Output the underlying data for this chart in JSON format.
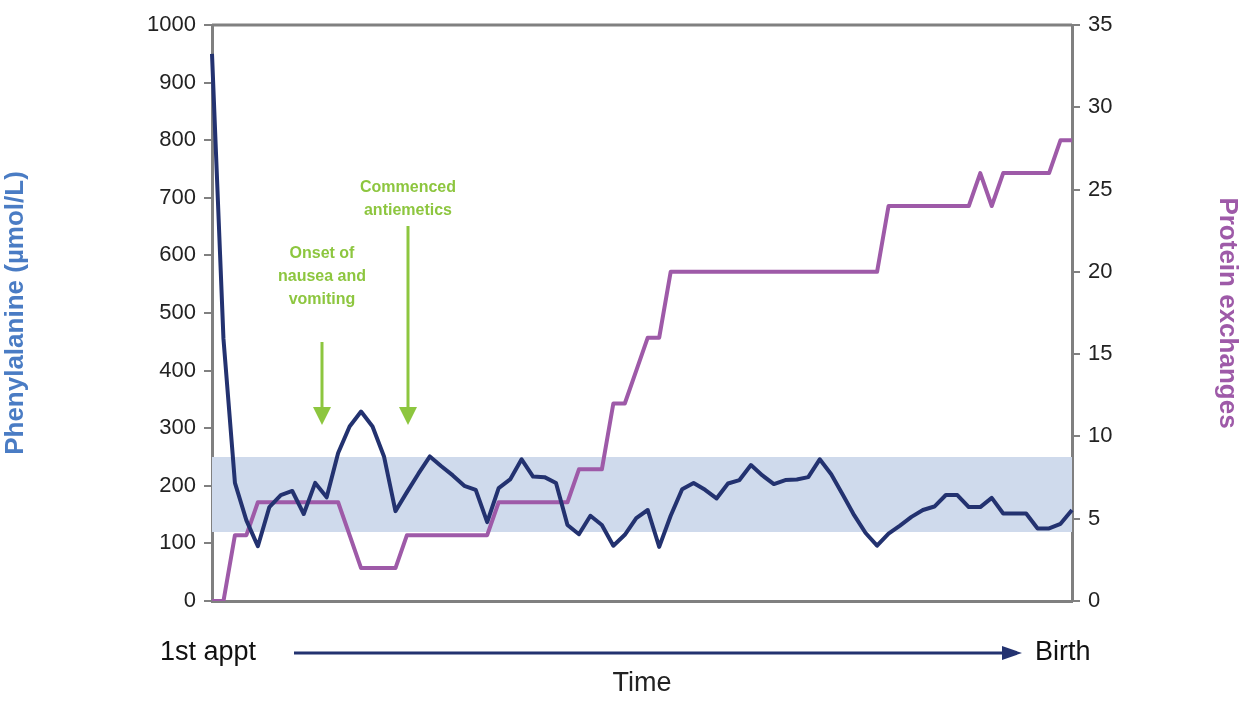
{
  "chart_data": {
    "type": "line",
    "xlabel": "Time",
    "ylabel": "Phenylalanine (µmol/L)",
    "y2label": "Protein exchanges",
    "categories": [
      null,
      null,
      null,
      null,
      null,
      null,
      null,
      null,
      null,
      null,
      null,
      null,
      null,
      null,
      null,
      null,
      null,
      null,
      null,
      null,
      null,
      null,
      null,
      null,
      null,
      null,
      null,
      null,
      null,
      null,
      null,
      null,
      null,
      null,
      null,
      null,
      null,
      null,
      null,
      null,
      null,
      null,
      null,
      null,
      null,
      null,
      null,
      null,
      null,
      null,
      null,
      null,
      null,
      null,
      null,
      null,
      null,
      null,
      null,
      null,
      null,
      null,
      null,
      null,
      null,
      null,
      null,
      null,
      null,
      null,
      null,
      null,
      null,
      null,
      null,
      null
    ],
    "series": [
      {
        "color": "#233270",
        "values": [
          950,
          455,
          205,
          140,
          95,
          163,
          184,
          191,
          151,
          205,
          180,
          257,
          303,
          329,
          303,
          251,
          156,
          189,
          221,
          251,
          234,
          218,
          200,
          193,
          137,
          196,
          211,
          246,
          216,
          215,
          205,
          132,
          116,
          148,
          132,
          96,
          115,
          144,
          158,
          94,
          148,
          194,
          205,
          193,
          178,
          204,
          210,
          236,
          218,
          203,
          210,
          211,
          215,
          246,
          220,
          185,
          149,
          118,
          96,
          117,
          131,
          146,
          158,
          164,
          184,
          184,
          163,
          163,
          179,
          152,
          152,
          152,
          126,
          126,
          134,
          158
        ]
      },
      {
        "color": "#9e5aa8",
        "axis": "y2",
        "values": [
          0,
          0,
          4,
          4,
          6,
          6,
          6,
          6,
          6,
          6,
          6,
          6,
          4,
          2,
          2,
          2,
          2,
          4,
          4,
          4,
          4,
          4,
          4,
          4,
          4,
          6,
          6,
          6,
          6,
          6,
          6,
          6,
          8,
          8,
          8,
          12,
          12,
          14,
          16,
          16,
          20,
          20,
          20,
          20,
          20,
          20,
          20,
          20,
          20,
          20,
          20,
          20,
          20,
          20,
          20,
          20,
          20,
          20,
          20,
          24,
          24,
          24,
          24,
          24,
          24,
          24,
          24,
          26,
          24,
          26,
          26,
          26,
          26,
          26,
          28,
          28
        ]
      }
    ],
    "ylim": [
      0,
      1000
    ],
    "yticks": [
      0,
      100,
      200,
      300,
      400,
      500,
      600,
      700,
      800,
      900,
      1000
    ],
    "y2lim": [
      0,
      35
    ],
    "y2ticks": [
      0,
      5,
      10,
      15,
      20,
      25,
      30,
      35
    ],
    "bands": [
      {
        "axis": "y",
        "from": 120,
        "to": 250,
        "color": "#cfdaec"
      }
    ],
    "annotations": [
      "Onset of nausea and vomiting",
      "Commenced antiemetics",
      "1st appt",
      "Birth"
    ],
    "grid": false,
    "legend": false,
    "marker": "none",
    "line_style": "solid"
  }
}
